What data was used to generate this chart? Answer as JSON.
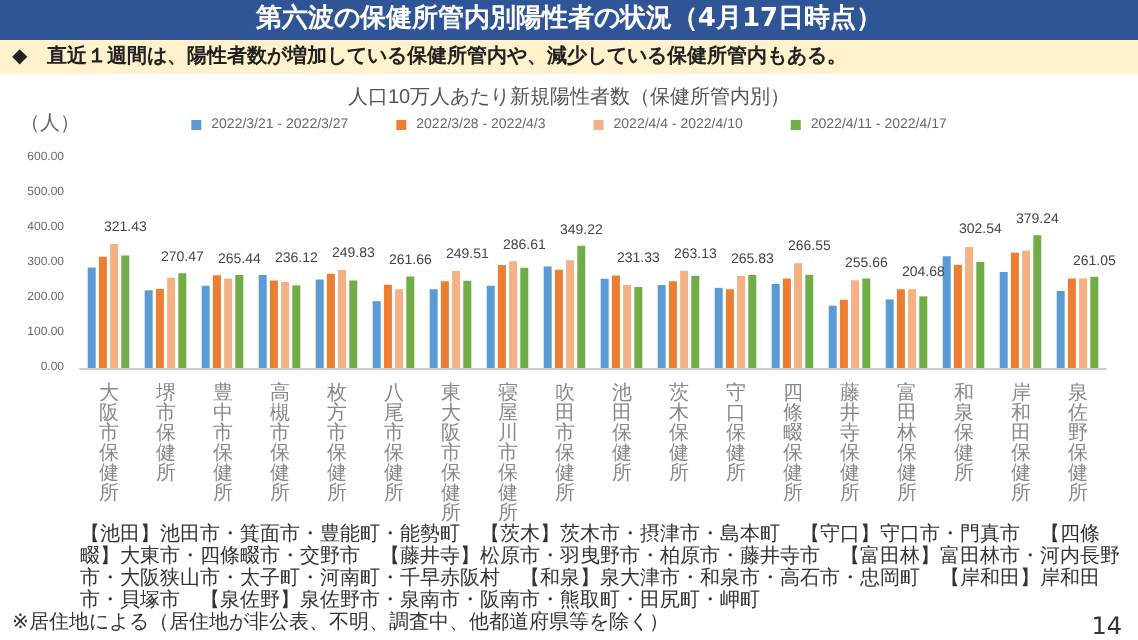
{
  "chart_data": {
    "type": "bar",
    "title": "人口10万人あたり新規陽性者数（保健所管内別）",
    "subtitle": "第六波の保健所管内別陽性者の状況（4月17日時点）",
    "ylabel": "（人）",
    "annotations": [
      "◆　直近１週間は、陽性者数が増加している保健所管内や、減少している保健所管内もある。",
      "【池田】池田市・箕面市・豊能町・能勢町　【茨木】茨木市・摂津市・島本町　【守口】守口市・門真市　【四條畷】大東市・四條畷市・交野市",
      "【藤井寺】松原市・羽曳野市・柏原市・藤井寺市　【富田林】富田林市・河内長野市・大阪狭山市・太子町・河南町・千早赤阪村",
      "【和泉】泉大津市・和泉市・高石市・忠岡町　【岸和田】岸和田市・貝塚市　【泉佐野】泉佐野市・泉南市・阪南市・熊取町・田尻町・岬町",
      "※居住地による（居住地が非公表、不明、調査中、他都道府県等を除く）",
      "14"
    ],
    "categories": [
      "大阪市保健所",
      "堺市保健所",
      "豊中市保健所",
      "高槻市保健所",
      "枚方市保健所",
      "八尾市保健所",
      "東大阪市保健所",
      "寝屋川市保健所",
      "吹田市保健所",
      "池田保健所",
      "茨木保健所",
      "守口保健所",
      "四條畷保健所",
      "藤井寺保健所",
      "富田林保健所",
      "和泉保健所",
      "岸和田保健所",
      "泉佐野保健所"
    ],
    "series": [
      {
        "name": "2022/3/21 - 2022/3/27",
        "color": "#5b9bd5",
        "values": [
          287,
          222,
          235,
          266,
          253,
          191,
          225,
          235,
          290,
          255,
          237,
          229,
          240,
          178,
          196,
          319,
          274,
          220
        ]
      },
      {
        "name": "2022/3/28 - 2022/4/3",
        "color": "#ed7d31",
        "values": [
          318,
          226,
          265,
          250,
          269,
          238,
          248,
          294,
          281,
          264,
          248,
          225,
          256,
          195,
          225,
          295,
          329,
          256
        ]
      },
      {
        "name": "2022/4/4 - 2022/4/10",
        "color": "#f4b183",
        "values": [
          354,
          258,
          256,
          246,
          280,
          225,
          277,
          305,
          308,
          237,
          278,
          263,
          299,
          251,
          225,
          346,
          336,
          256
        ]
      },
      {
        "name": "2022/4/11 - 2022/4/17",
        "color": "#70ad47",
        "values": [
          321.43,
          270.47,
          265.44,
          236.12,
          249.83,
          261.66,
          249.51,
          286.61,
          349.22,
          231.33,
          263.13,
          265.83,
          266.55,
          255.66,
          204.68,
          302.54,
          379.24,
          261.05
        ],
        "value_labels": [
          "321.43",
          "270.47",
          "265.44",
          "236.12",
          "249.83",
          "261.66",
          "249.51",
          "286.61",
          "349.22",
          "231.33",
          "263.13",
          "265.83",
          "266.55",
          "255.66",
          "204.68",
          "302.54",
          "379.24",
          "261.05"
        ]
      }
    ],
    "ylim": [
      0,
      600
    ],
    "yticks": [
      {
        "value": 0,
        "label": "0.00"
      },
      {
        "value": 100,
        "label": "100.00"
      },
      {
        "value": 200,
        "label": "200.00"
      },
      {
        "value": 300,
        "label": "300.00"
      },
      {
        "value": 400,
        "label": "400.00"
      },
      {
        "value": 500,
        "label": "500.00"
      },
      {
        "value": 600,
        "label": "600.00"
      }
    ],
    "grid": false,
    "legend": "top"
  }
}
